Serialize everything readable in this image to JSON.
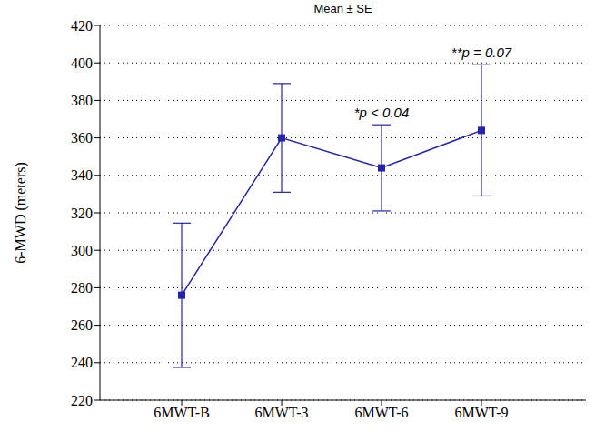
{
  "chart_data": {
    "type": "line",
    "title": "Mean ± SE",
    "y_label": "6-MWD (meters)",
    "categories": [
      "6MWT-B",
      "6MWT-3",
      "6MWT-6",
      "6MWT-9"
    ],
    "values": [
      276,
      360,
      344,
      364
    ],
    "errors": [
      38.5,
      29,
      23,
      35
    ],
    "color": "#2323b0",
    "marker": "square",
    "ylim": [
      220,
      420
    ],
    "yticks": [
      220,
      240,
      260,
      280,
      300,
      320,
      340,
      360,
      380,
      400,
      420
    ],
    "grid": true,
    "annotations": [
      {
        "category": "6MWT-6",
        "text": "*p < 0.04"
      },
      {
        "category": "6MWT-9",
        "text": "**p = 0.07"
      }
    ]
  }
}
